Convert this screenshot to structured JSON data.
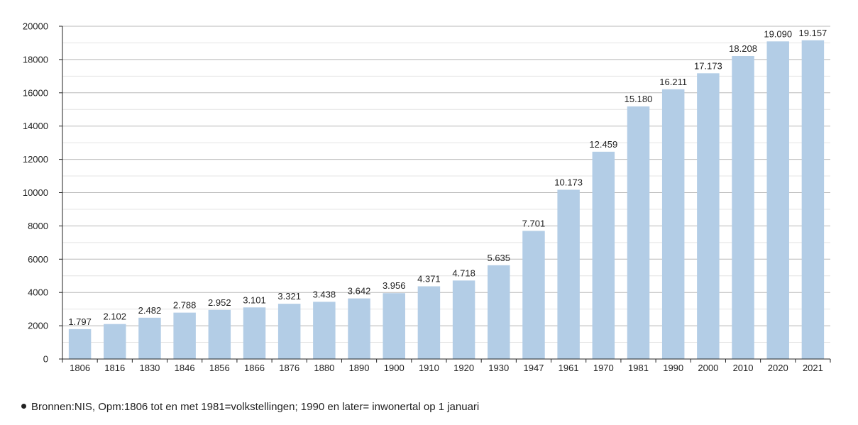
{
  "chart_data": {
    "type": "bar",
    "categories": [
      "1806",
      "1816",
      "1830",
      "1846",
      "1856",
      "1866",
      "1876",
      "1880",
      "1890",
      "1900",
      "1910",
      "1920",
      "1930",
      "1947",
      "1961",
      "1970",
      "1981",
      "1990",
      "2000",
      "2010",
      "2020",
      "2021"
    ],
    "values": [
      1797,
      2102,
      2482,
      2788,
      2952,
      3101,
      3321,
      3438,
      3642,
      3956,
      4371,
      4718,
      5635,
      7701,
      10173,
      12459,
      15180,
      16211,
      17173,
      18208,
      19090,
      19157
    ],
    "value_labels": [
      "1.797",
      "2.102",
      "2.482",
      "2.788",
      "2.952",
      "3.101",
      "3.321",
      "3.438",
      "3.642",
      "3.956",
      "4.371",
      "4.718",
      "5.635",
      "7.701",
      "10.173",
      "12.459",
      "15.180",
      "16.211",
      "17.173",
      "18.208",
      "19.090",
      "19.157"
    ],
    "ylim": [
      0,
      20000
    ],
    "y_ticks": [
      0,
      2000,
      4000,
      6000,
      8000,
      10000,
      12000,
      14000,
      16000,
      18000,
      20000
    ],
    "y_tick_labels": [
      "0",
      "2000",
      "4000",
      "6000",
      "8000",
      "10000",
      "12000",
      "14000",
      "16000",
      "18000",
      "20000"
    ],
    "minor_grid_step": 1000,
    "grid": true,
    "legend": "none",
    "title": "",
    "xlabel": "",
    "ylabel": "",
    "colors": {
      "bar": "#b3cde6",
      "grid_major": "#b8b8b8",
      "grid_minor": "#e4e4e4",
      "axis": "#222222",
      "text": "#222222"
    }
  },
  "footnote": {
    "text": "Bronnen:NIS, Opm:1806 tot en met 1981=volkstellingen; 1990 en later= inwonertal op 1 januari"
  }
}
